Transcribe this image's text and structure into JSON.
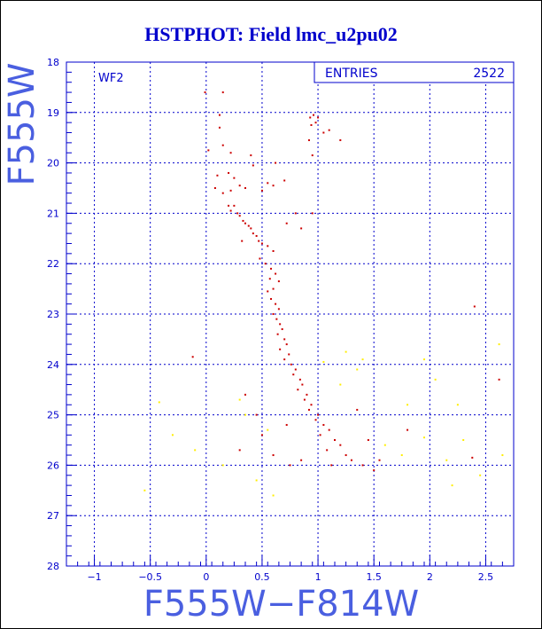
{
  "title": "HSTPHOT: Field lmc_u2pu02",
  "chart_data": {
    "type": "scatter",
    "panel_label": "WF2",
    "stats": {
      "label": "ENTRIES",
      "value": "2522"
    },
    "xlabel": "F555W−F814W",
    "ylabel": "F555W",
    "xlim": [
      -1.25,
      2.75
    ],
    "ylim": [
      18,
      28
    ],
    "y_inverted": true,
    "grid": true,
    "x_ticks": [
      -1,
      -0.5,
      0,
      0.5,
      1,
      1.5,
      2,
      2.5
    ],
    "x_tick_labels": [
      "−1",
      "−0.5",
      "0",
      "0.5",
      "1",
      "1.5",
      "2",
      "2.5"
    ],
    "y_ticks": [
      18,
      19,
      20,
      21,
      22,
      23,
      24,
      25,
      26,
      27,
      28
    ],
    "colors": {
      "axis": "#0000cc",
      "grid": "#0000cc",
      "main_points": "#cc0000",
      "faint_points": "#ffee00"
    },
    "series": [
      {
        "color": "#cc0000",
        "points": [
          [
            -0.01,
            18.6
          ],
          [
            0.15,
            18.6
          ],
          [
            0.12,
            19.05
          ],
          [
            0.93,
            19.1
          ],
          [
            0.96,
            19.05
          ],
          [
            0.98,
            19.2
          ],
          [
            0.94,
            19.25
          ],
          [
            1.0,
            19.1
          ],
          [
            1.05,
            19.4
          ],
          [
            0.92,
            19.55
          ],
          [
            1.1,
            19.35
          ],
          [
            1.2,
            19.55
          ],
          [
            0.95,
            19.85
          ],
          [
            0.02,
            19.75
          ],
          [
            0.12,
            19.3
          ],
          [
            0.15,
            19.65
          ],
          [
            0.22,
            19.8
          ],
          [
            0.4,
            19.85
          ],
          [
            0.1,
            20.25
          ],
          [
            0.2,
            20.2
          ],
          [
            0.25,
            20.3
          ],
          [
            0.3,
            20.45
          ],
          [
            0.35,
            20.5
          ],
          [
            0.5,
            20.55
          ],
          [
            0.7,
            20.35
          ],
          [
            0.6,
            20.45
          ],
          [
            0.08,
            20.5
          ],
          [
            0.15,
            20.6
          ],
          [
            0.22,
            20.55
          ],
          [
            0.42,
            20.05
          ],
          [
            0.55,
            20.4
          ],
          [
            0.62,
            20.0
          ],
          [
            0.2,
            20.85
          ],
          [
            0.22,
            20.95
          ],
          [
            0.25,
            20.85
          ],
          [
            0.28,
            21.0
          ],
          [
            0.3,
            21.05
          ],
          [
            0.33,
            21.15
          ],
          [
            0.35,
            21.2
          ],
          [
            0.38,
            21.25
          ],
          [
            0.4,
            21.3
          ],
          [
            0.42,
            21.4
          ],
          [
            0.45,
            21.45
          ],
          [
            0.47,
            21.55
          ],
          [
            0.5,
            21.6
          ],
          [
            0.55,
            21.65
          ],
          [
            0.6,
            21.75
          ],
          [
            0.72,
            21.2
          ],
          [
            0.8,
            21.0
          ],
          [
            0.85,
            21.3
          ],
          [
            0.95,
            21.0
          ],
          [
            0.32,
            21.55
          ],
          [
            0.48,
            21.9
          ],
          [
            0.53,
            22.0
          ],
          [
            0.58,
            22.1
          ],
          [
            0.62,
            22.2
          ],
          [
            0.57,
            22.3
          ],
          [
            0.65,
            22.35
          ],
          [
            0.6,
            22.5
          ],
          [
            0.55,
            22.55
          ],
          [
            0.58,
            22.7
          ],
          [
            0.62,
            22.8
          ],
          [
            0.65,
            22.9
          ],
          [
            0.6,
            23.0
          ],
          [
            0.63,
            23.1
          ],
          [
            0.66,
            23.2
          ],
          [
            0.68,
            23.3
          ],
          [
            0.64,
            23.4
          ],
          [
            0.7,
            23.5
          ],
          [
            0.72,
            23.6
          ],
          [
            0.66,
            23.7
          ],
          [
            0.74,
            23.8
          ],
          [
            0.7,
            23.9
          ],
          [
            0.76,
            24.0
          ],
          [
            0.8,
            24.1
          ],
          [
            0.78,
            24.2
          ],
          [
            0.84,
            24.3
          ],
          [
            0.86,
            24.4
          ],
          [
            0.82,
            24.5
          ],
          [
            0.9,
            24.6
          ],
          [
            0.88,
            24.7
          ],
          [
            0.94,
            24.8
          ],
          [
            0.92,
            24.9
          ],
          [
            1.0,
            25.0
          ],
          [
            0.98,
            25.1
          ],
          [
            1.05,
            25.2
          ],
          [
            1.1,
            25.3
          ],
          [
            1.02,
            25.4
          ],
          [
            1.15,
            25.5
          ],
          [
            1.2,
            25.6
          ],
          [
            1.08,
            25.7
          ],
          [
            1.25,
            25.8
          ],
          [
            1.3,
            25.9
          ],
          [
            1.12,
            26.0
          ],
          [
            1.4,
            26.0
          ],
          [
            1.5,
            26.1
          ],
          [
            0.3,
            25.7
          ],
          [
            0.5,
            25.4
          ],
          [
            0.6,
            25.8
          ],
          [
            0.75,
            26.0
          ],
          [
            0.85,
            25.9
          ],
          [
            -0.12,
            23.85
          ],
          [
            2.4,
            22.85
          ],
          [
            2.38,
            25.85
          ],
          [
            2.62,
            24.3
          ],
          [
            1.55,
            25.9
          ],
          [
            0.45,
            25.0
          ],
          [
            1.8,
            25.3
          ],
          [
            1.35,
            24.9
          ],
          [
            0.72,
            25.2
          ],
          [
            0.35,
            24.6
          ],
          [
            1.45,
            25.5
          ]
        ]
      },
      {
        "color": "#ffee00",
        "points": [
          [
            -0.42,
            24.75
          ],
          [
            -0.3,
            25.4
          ],
          [
            -0.55,
            26.5
          ],
          [
            -0.1,
            25.7
          ],
          [
            0.3,
            24.7
          ],
          [
            0.35,
            25.0
          ],
          [
            0.55,
            25.3
          ],
          [
            0.15,
            26.0
          ],
          [
            0.45,
            26.3
          ],
          [
            1.25,
            23.75
          ],
          [
            1.05,
            23.95
          ],
          [
            1.35,
            24.1
          ],
          [
            1.6,
            25.6
          ],
          [
            1.75,
            25.8
          ],
          [
            1.95,
            25.45
          ],
          [
            2.15,
            25.9
          ],
          [
            2.25,
            24.8
          ],
          [
            2.3,
            25.5
          ],
          [
            2.45,
            26.2
          ],
          [
            2.62,
            23.6
          ],
          [
            2.65,
            25.8
          ],
          [
            1.95,
            23.9
          ],
          [
            2.05,
            24.3
          ],
          [
            1.8,
            24.8
          ],
          [
            2.2,
            26.4
          ],
          [
            0.6,
            26.6
          ],
          [
            1.2,
            24.4
          ],
          [
            1.4,
            23.9
          ]
        ]
      }
    ]
  }
}
